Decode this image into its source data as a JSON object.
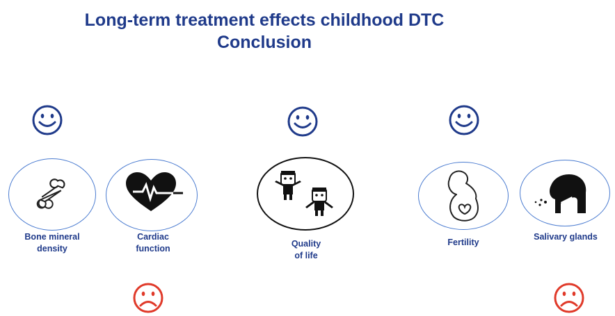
{
  "slide": {
    "title_line1": "Long-term treatment effects childhood DTC",
    "title_line2": "Conclusion"
  },
  "colors": {
    "title": "#1f3a8a",
    "happy_face": "#1f3a8a",
    "sad_face": "#e03a2a",
    "circle_border": "#4a7bd0"
  },
  "faces": [
    {
      "icon": "smiley-face-icon",
      "mood": "positive"
    },
    {
      "icon": "smiley-face-icon",
      "mood": "positive"
    },
    {
      "icon": "smiley-face-icon",
      "mood": "positive"
    },
    {
      "icon": "frowning-face-icon",
      "mood": "negative"
    },
    {
      "icon": "frowning-face-icon",
      "mood": "negative"
    }
  ],
  "topics": [
    {
      "label": "Bone mineral\ndensity",
      "icon": "bone-icon"
    },
    {
      "label": "Cardiac\nfunction",
      "icon": "heartbeat-icon"
    },
    {
      "label": "Quality\nof life",
      "icon": "people-icon"
    },
    {
      "label": "Fertility",
      "icon": "pregnant-woman-icon"
    },
    {
      "label": "Salivary glands",
      "icon": "salivary-glands-icon"
    }
  ]
}
